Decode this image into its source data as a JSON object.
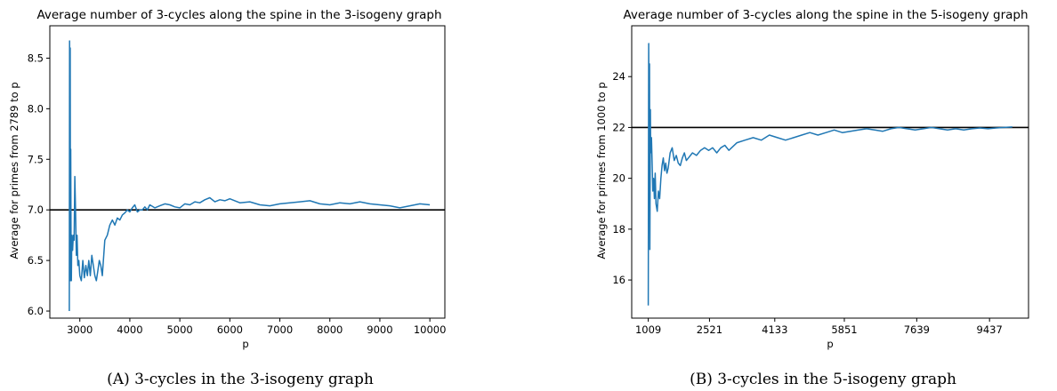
{
  "chart_data": [
    {
      "type": "line",
      "title": "Average number of 3-cycles along the spine in the 3-isogeny graph",
      "xlabel": "p",
      "ylabel": "Average for primes from 2789 to p",
      "caption": "(A) 3-cycles in the 3-isogeny graph",
      "xlim": [
        2400,
        10300
      ],
      "ylim": [
        5.93,
        8.82
      ],
      "xticks": [
        3000,
        4000,
        5000,
        6000,
        7000,
        8000,
        9000,
        10000
      ],
      "xtick_labels": [
        "3000",
        "4000",
        "5000",
        "6000",
        "7000",
        "8000",
        "9000",
        "10000"
      ],
      "yticks": [
        6.0,
        6.5,
        7.0,
        7.5,
        8.0,
        8.5
      ],
      "ytick_labels": [
        "6.0",
        "6.5",
        "7.0",
        "7.5",
        "8.0",
        "8.5"
      ],
      "reference_line": 7.0,
      "series_color": "#1f77b4",
      "reference_color": "#000000",
      "series": [
        {
          "x": [
            2789,
            2795,
            2801,
            2807,
            2813,
            2819,
            2825,
            2831,
            2840,
            2855,
            2870,
            2885,
            2900,
            2915,
            2930,
            2945,
            2960,
            2980,
            3000,
            3030,
            3060,
            3090,
            3120,
            3150,
            3180,
            3210,
            3240,
            3270,
            3300,
            3330,
            3360,
            3390,
            3420,
            3450,
            3500,
            3550,
            3600,
            3650,
            3700,
            3750,
            3800,
            3850,
            3900,
            3950,
            4000,
            4050,
            4100,
            4150,
            4200,
            4250,
            4300,
            4350,
            4400,
            4500,
            4600,
            4700,
            4800,
            4900,
            5000,
            5100,
            5200,
            5300,
            5400,
            5500,
            5600,
            5700,
            5800,
            5900,
            6000,
            6200,
            6400,
            6600,
            6800,
            7000,
            7200,
            7400,
            7600,
            7800,
            8000,
            8200,
            8400,
            8600,
            8800,
            9000,
            9200,
            9400,
            9600,
            9800,
            10000
          ],
          "y": [
            6.0,
            8.67,
            7.1,
            8.6,
            6.3,
            7.6,
            6.55,
            6.3,
            6.75,
            6.6,
            6.75,
            6.7,
            7.33,
            7.0,
            6.55,
            6.75,
            6.45,
            6.5,
            6.35,
            6.3,
            6.5,
            6.33,
            6.45,
            6.35,
            6.5,
            6.35,
            6.55,
            6.45,
            6.35,
            6.3,
            6.4,
            6.5,
            6.45,
            6.35,
            6.7,
            6.75,
            6.85,
            6.9,
            6.85,
            6.92,
            6.9,
            6.95,
            6.97,
            7.0,
            6.98,
            7.02,
            7.05,
            6.98,
            7.0,
            7.0,
            7.03,
            7.0,
            7.05,
            7.02,
            7.04,
            7.06,
            7.05,
            7.03,
            7.02,
            7.06,
            7.05,
            7.08,
            7.07,
            7.1,
            7.12,
            7.08,
            7.1,
            7.09,
            7.11,
            7.07,
            7.08,
            7.05,
            7.04,
            7.06,
            7.07,
            7.08,
            7.09,
            7.06,
            7.05,
            7.07,
            7.06,
            7.08,
            7.06,
            7.05,
            7.04,
            7.02,
            7.04,
            7.06,
            7.05
          ]
        }
      ]
    },
    {
      "type": "line",
      "title": "Average number of 3-cycles along the spine in the 5-isogeny graph",
      "xlabel": "p",
      "ylabel": "Average for primes from 1000 to p",
      "caption": "(B) 3-cycles in the 5-isogeny graph",
      "xlim": [
        600,
        10400
      ],
      "ylim": [
        14.5,
        26.0
      ],
      "xticks": [
        1009,
        2521,
        4133,
        5851,
        7639,
        9437
      ],
      "xtick_labels": [
        "1009",
        "2521",
        "4133",
        "5851",
        "7639",
        "9437"
      ],
      "yticks": [
        16,
        18,
        20,
        22,
        24
      ],
      "ytick_labels": [
        "16",
        "18",
        "20",
        "22",
        "24"
      ],
      "reference_line": 22,
      "series_color": "#1f77b4",
      "reference_color": "#000000",
      "series": [
        {
          "x": [
            1009,
            1019,
            1031,
            1039,
            1049,
            1061,
            1069,
            1087,
            1100,
            1120,
            1140,
            1160,
            1180,
            1200,
            1230,
            1260,
            1290,
            1320,
            1350,
            1380,
            1410,
            1440,
            1470,
            1500,
            1550,
            1600,
            1650,
            1700,
            1750,
            1800,
            1850,
            1900,
            1950,
            2000,
            2100,
            2200,
            2300,
            2400,
            2500,
            2600,
            2700,
            2800,
            2900,
            3000,
            3200,
            3400,
            3600,
            3800,
            4000,
            4200,
            4400,
            4600,
            4800,
            5000,
            5200,
            5400,
            5600,
            5800,
            6000,
            6200,
            6400,
            6600,
            6800,
            7000,
            7200,
            7400,
            7600,
            7800,
            8000,
            8200,
            8400,
            8600,
            8800,
            9000,
            9200,
            9400,
            9600,
            9800,
            10000
          ],
          "y": [
            15.0,
            25.3,
            20.0,
            24.5,
            17.2,
            22.7,
            21.0,
            21.6,
            20.8,
            19.5,
            20.0,
            19.2,
            20.2,
            19.0,
            18.7,
            19.5,
            19.2,
            20.0,
            20.5,
            20.8,
            20.3,
            20.6,
            20.2,
            20.4,
            21.0,
            21.2,
            20.7,
            20.9,
            20.6,
            20.5,
            20.8,
            21.0,
            20.7,
            20.8,
            21.0,
            20.9,
            21.1,
            21.2,
            21.1,
            21.2,
            21.0,
            21.2,
            21.3,
            21.1,
            21.4,
            21.5,
            21.6,
            21.5,
            21.7,
            21.6,
            21.5,
            21.6,
            21.7,
            21.8,
            21.7,
            21.8,
            21.9,
            21.8,
            21.85,
            21.9,
            21.95,
            21.9,
            21.85,
            21.95,
            22.0,
            21.95,
            21.9,
            21.95,
            22.0,
            21.95,
            21.9,
            21.95,
            21.9,
            21.95,
            21.98,
            21.95,
            21.98,
            22.0,
            22.02
          ]
        }
      ]
    }
  ]
}
